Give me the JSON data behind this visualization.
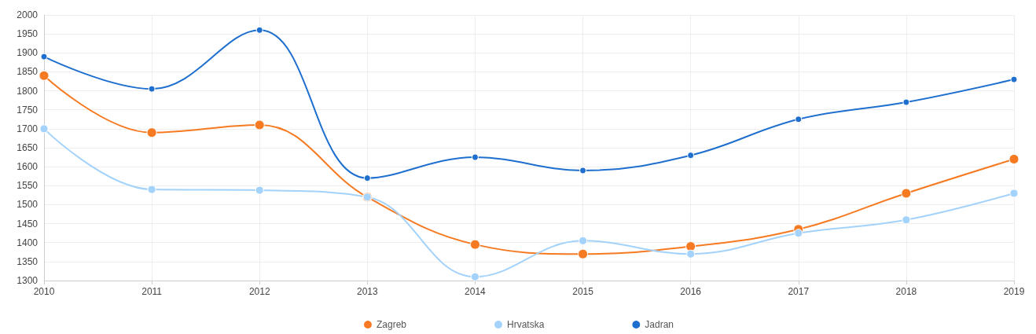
{
  "chart_data": {
    "type": "line",
    "categories": [
      "2010",
      "2011",
      "2012",
      "2013",
      "2014",
      "2015",
      "2016",
      "2017",
      "2018",
      "2019"
    ],
    "series": [
      {
        "name": "Zagreb",
        "color": "#f57a22",
        "values": [
          1840,
          1690,
          1710,
          1520,
          1395,
          1370,
          1390,
          1435,
          1530,
          1620
        ]
      },
      {
        "name": "Hrvatska",
        "color": "#a3d2fb",
        "values": [
          1700,
          1540,
          1538,
          1520,
          1310,
          1405,
          1370,
          1425,
          1460,
          1530
        ]
      },
      {
        "name": "Jadran",
        "color": "#1f6fcf",
        "values": [
          1890,
          1805,
          1960,
          1570,
          1625,
          1590,
          1630,
          1725,
          1770,
          1830
        ]
      }
    ],
    "ylim": [
      1300,
      2000
    ],
    "yticks": [
      1300,
      1350,
      1400,
      1450,
      1500,
      1550,
      1600,
      1650,
      1700,
      1750,
      1800,
      1850,
      1900,
      1950,
      2000
    ],
    "grid": true,
    "legend": "bottom",
    "marker": "circle",
    "line_style": "solid"
  }
}
